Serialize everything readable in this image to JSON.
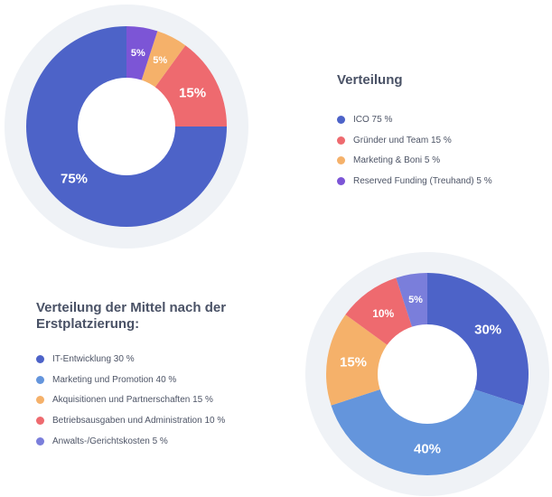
{
  "chart_data": [
    {
      "type": "pie",
      "title": "Verteilung",
      "categories": [
        "ICO",
        "Gründer und Team",
        "Marketing & Boni",
        "Reserved Funding (Treuhand)"
      ],
      "values": [
        75,
        15,
        5,
        5
      ],
      "slice_labels": [
        "75%",
        "15%",
        "5%",
        "5%"
      ],
      "legend_labels": [
        "ICO 75 %",
        "Gründer und Team 15 %",
        "Marketing & Boni 5 %",
        "Reserved Funding (Treuhand) 5 %"
      ],
      "colors": [
        "#4d63c8",
        "#ee6a6f",
        "#f5b16a",
        "#7c55d6"
      ],
      "donut": true,
      "legend_position": "right"
    },
    {
      "type": "pie",
      "title": "Verteilung der Mittel nach der Erstplatzierung:",
      "categories": [
        "IT-Entwicklung",
        "Marketing und Promotion",
        "Akquisitionen und Partnerschaften",
        "Betriebsausgaben und Administration",
        "Anwalts-/Gerichtskosten"
      ],
      "values": [
        30,
        40,
        15,
        10,
        5
      ],
      "slice_labels": [
        "30%",
        "40%",
        "15%",
        "10%",
        "5%"
      ],
      "legend_labels": [
        "IT-Entwicklung 30 %",
        "Marketing und Promotion 40 %",
        "Akquisitionen und Partnerschaften 15 %",
        "Betriebsausgaben und Administration 10 %",
        "Anwalts-/Gerichtskosten 5 %"
      ],
      "colors": [
        "#4d63c8",
        "#6495dc",
        "#f5b16a",
        "#ee6a6f",
        "#7a7edb"
      ],
      "donut": true,
      "legend_position": "left"
    }
  ],
  "colors": {
    "halo": "#eff2f6",
    "label_text": "#ffffff",
    "title_text": "#4a5266",
    "legend_text": "#4d5466"
  }
}
